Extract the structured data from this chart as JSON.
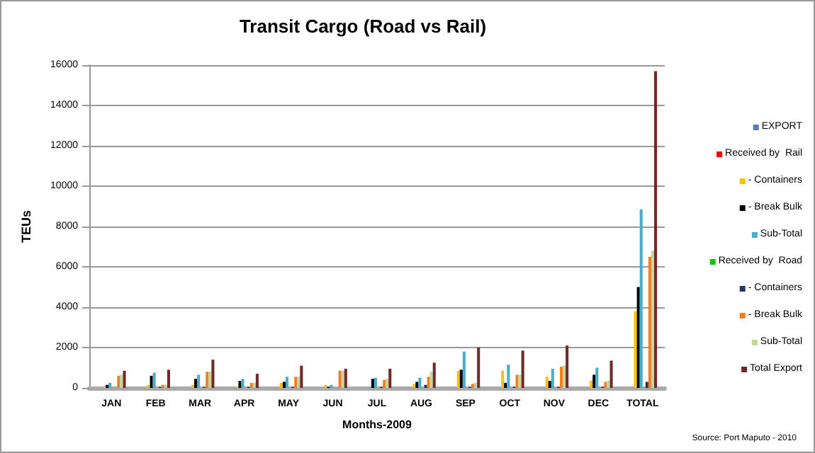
{
  "chart_data": {
    "type": "bar",
    "title": "Transit Cargo (Road vs Rail)",
    "xlabel": "Months-2009",
    "ylabel": "TEUs",
    "annotations": [
      "Source: Port Maputo - 2010"
    ],
    "categories": [
      "JAN",
      "FEB",
      "MAR",
      "APR",
      "MAY",
      "JUN",
      "JUL",
      "AUG",
      "SEP",
      "OCT",
      "NOV",
      "DEC",
      "TOTAL"
    ],
    "series": [
      {
        "name": "EXPORT",
        "color": "#4f81bd",
        "values": [
          0,
          0,
          0,
          0,
          0,
          0,
          0,
          0,
          0,
          0,
          0,
          0,
          0
        ]
      },
      {
        "name": "Received by  Rail",
        "color": "#ff0000",
        "values": [
          0,
          0,
          0,
          0,
          0,
          0,
          0,
          0,
          0,
          0,
          0,
          0,
          0
        ]
      },
      {
        "name": "- Containers",
        "color": "#ffc000",
        "values": [
          50,
          150,
          150,
          50,
          250,
          150,
          0,
          200,
          850,
          850,
          550,
          350,
          3800
        ]
      },
      {
        "name": "- Break Bulk",
        "color": "#000000",
        "values": [
          150,
          600,
          450,
          350,
          300,
          50,
          450,
          300,
          900,
          250,
          350,
          650,
          5000
        ]
      },
      {
        "name": "Sub-Total",
        "color": "#4bacc6",
        "values": [
          250,
          750,
          650,
          450,
          550,
          150,
          500,
          500,
          1800,
          1150,
          950,
          1000,
          8850
        ]
      },
      {
        "name": "Received by  Road",
        "color": "#00cc00",
        "values": [
          0,
          0,
          0,
          0,
          0,
          0,
          0,
          0,
          0,
          0,
          0,
          0,
          0
        ]
      },
      {
        "name": "- Containers",
        "color": "#1f3864",
        "values": [
          0,
          50,
          50,
          50,
          50,
          0,
          50,
          150,
          50,
          50,
          50,
          50,
          300
        ]
      },
      {
        "name": "- Break Bulk",
        "color": "#f07f20",
        "values": [
          600,
          150,
          800,
          250,
          550,
          850,
          400,
          550,
          200,
          650,
          1050,
          300,
          6500
        ]
      },
      {
        "name": "Sub-Total",
        "color": "#c4d79b",
        "values": [
          650,
          150,
          800,
          250,
          550,
          850,
          450,
          800,
          250,
          650,
          1100,
          350,
          6800
        ]
      },
      {
        "name": "Total Export",
        "color": "#722a26",
        "values": [
          850,
          900,
          1400,
          700,
          1100,
          950,
          950,
          1250,
          2000,
          1850,
          2100,
          1350,
          15700
        ]
      }
    ],
    "ylim": [
      0,
      16000
    ],
    "yticks": [
      0,
      2000,
      4000,
      6000,
      8000,
      10000,
      12000,
      14000,
      16000
    ],
    "grid": "y",
    "legend": "right"
  }
}
